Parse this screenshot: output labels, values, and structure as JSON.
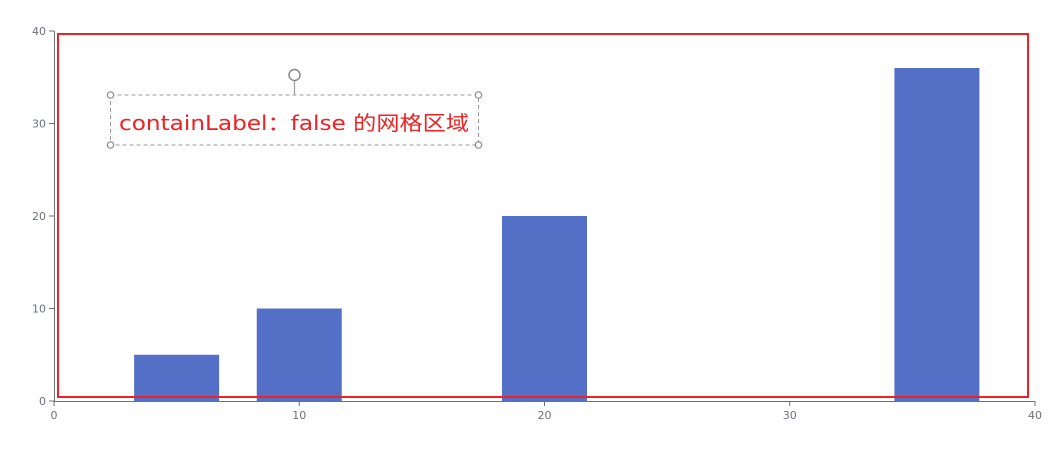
{
  "chart_data": {
    "type": "bar",
    "x": [
      5,
      10,
      20,
      36
    ],
    "values": [
      5,
      10,
      20,
      36
    ],
    "xlim": [
      0,
      40
    ],
    "ylim": [
      0,
      40
    ],
    "xticks": [
      "0",
      "10",
      "20",
      "30",
      "40"
    ],
    "yticks": [
      "0",
      "10",
      "20",
      "30",
      "40"
    ],
    "grid": false,
    "bar_color": "#5470c6",
    "title": "",
    "xlabel": "",
    "ylabel": ""
  },
  "annotation": {
    "text": "containLabel：false 的网格区域",
    "color": "#ee2222",
    "frame_color": "#ee2222"
  }
}
